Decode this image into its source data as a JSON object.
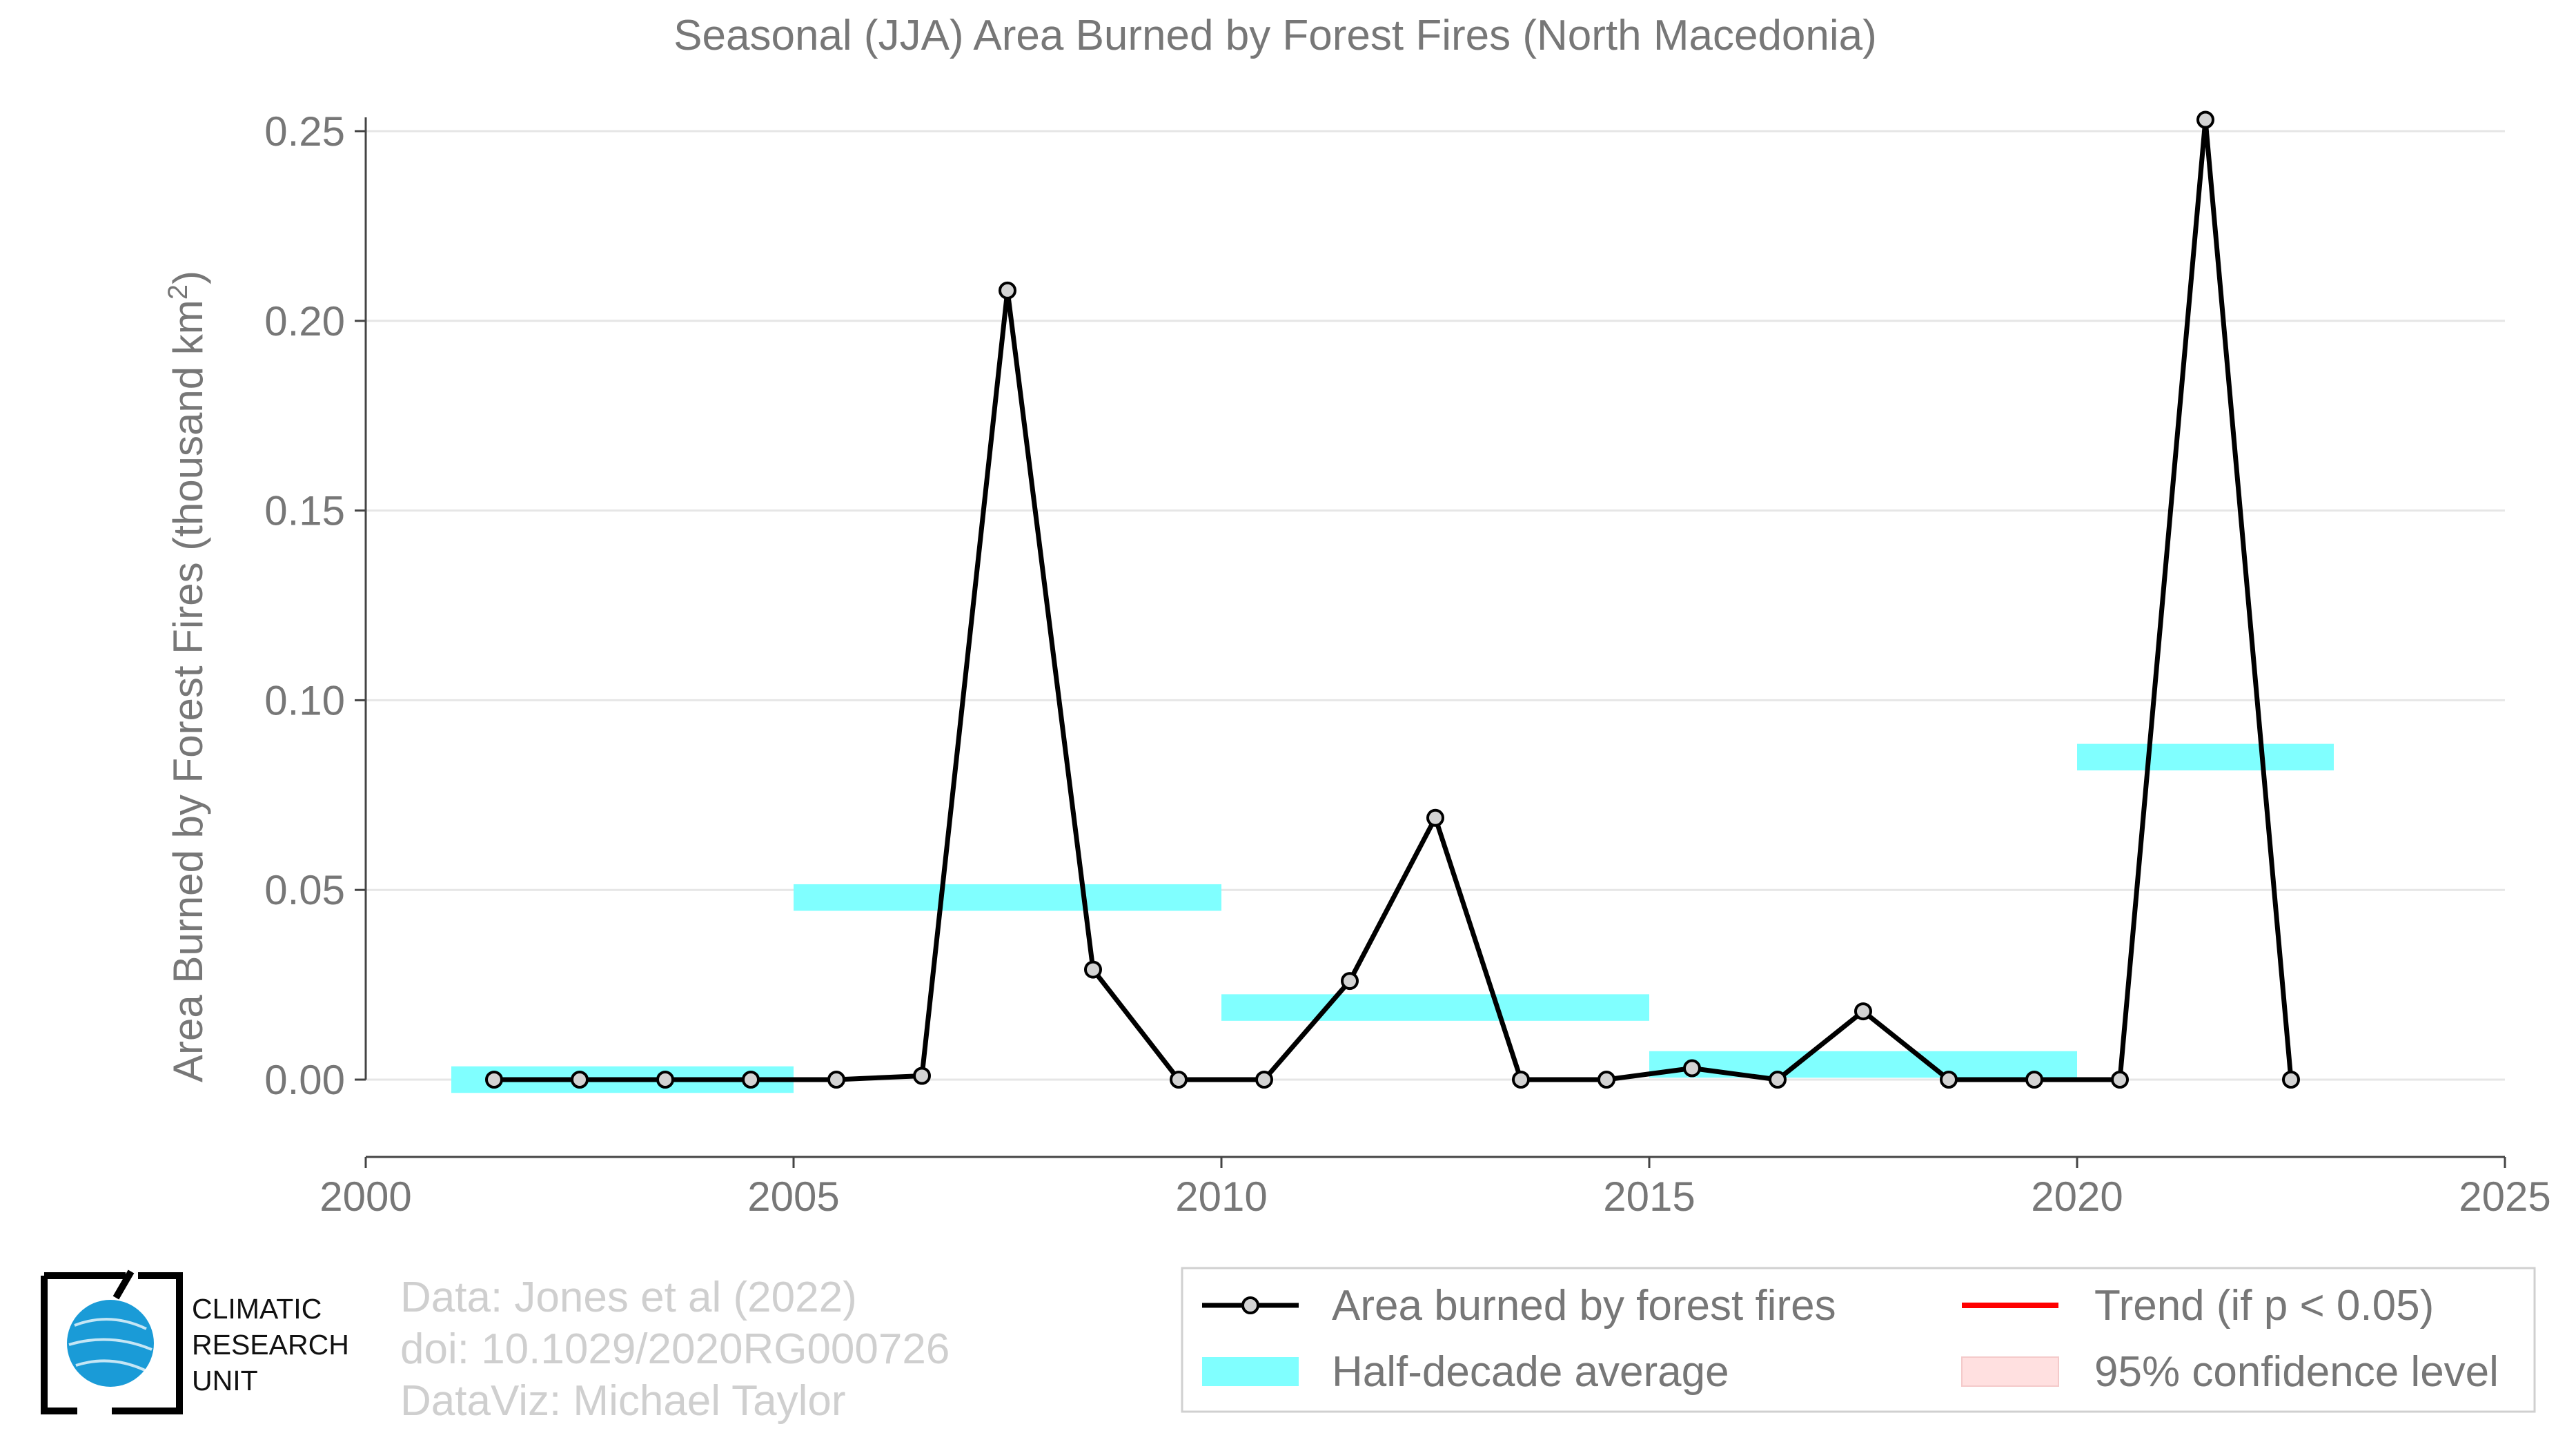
{
  "chart_data": {
    "type": "line",
    "title": "Seasonal (JJA) Area Burned by Forest Fires (North Macedonia)",
    "ylabel": "Area Burned by Forest Fires (thousand km²)",
    "xlabel": "",
    "xlim": [
      2000,
      2025
    ],
    "ylim": [
      -0.02,
      0.25
    ],
    "x_ticks": [
      "2000",
      "2005",
      "2010",
      "2015",
      "2020",
      "2025"
    ],
    "y_ticks": [
      "0.00",
      "0.05",
      "0.10",
      "0.15",
      "0.20",
      "0.25"
    ],
    "grid": true,
    "series": [
      {
        "name": "Area burned by forest fires",
        "color": "#000000",
        "marker_color": "#d3d3d3",
        "x": [
          2001.5,
          2002.5,
          2003.5,
          2004.5,
          2005.5,
          2006.5,
          2007.5,
          2008.5,
          2009.5,
          2010.5,
          2011.5,
          2012.5,
          2013.5,
          2014.5,
          2015.5,
          2016.5,
          2017.5,
          2018.5,
          2019.5,
          2020.5,
          2021.5,
          2022.5
        ],
        "values": [
          0.0,
          0.0,
          0.0,
          0.0,
          0.0,
          0.001,
          0.208,
          0.029,
          0.0,
          0.0,
          0.026,
          0.069,
          0.0,
          0.0,
          0.003,
          0.0,
          0.018,
          0.0,
          0.0,
          0.0,
          0.253,
          0.0
        ]
      }
    ],
    "half_decade_average": {
      "name": "Half-decade average",
      "color": "#80ffff",
      "segments": [
        {
          "x0": 2001,
          "x1": 2005,
          "value": 0.0
        },
        {
          "x0": 2005,
          "x1": 2010,
          "value": 0.048
        },
        {
          "x0": 2010,
          "x1": 2015,
          "value": 0.019
        },
        {
          "x0": 2015,
          "x1": 2020,
          "value": 0.004
        },
        {
          "x0": 2020,
          "x1": 2023,
          "value": 0.085
        }
      ]
    },
    "legend": {
      "placement": "bottom-right",
      "entries": [
        {
          "label": "Area burned by forest fires",
          "kind": "line-marker",
          "color": "#000000"
        },
        {
          "label": "Trend (if p < 0.05)",
          "kind": "line",
          "color": "#ff0000"
        },
        {
          "label": "Half-decade average",
          "kind": "band",
          "color": "#80ffff"
        },
        {
          "label": "95% confidence level",
          "kind": "band",
          "color": "#ffe0e0"
        }
      ]
    }
  },
  "credits": {
    "line1": "Data: Jones et al (2022)",
    "line2": "doi: 10.1029/2020RG000726",
    "line3": "DataViz: Michael Taylor"
  },
  "logo": {
    "line1": "CLIMATIC",
    "line2": "RESEARCH",
    "line3": "UNIT",
    "globe_color": "#1a9bd7"
  }
}
